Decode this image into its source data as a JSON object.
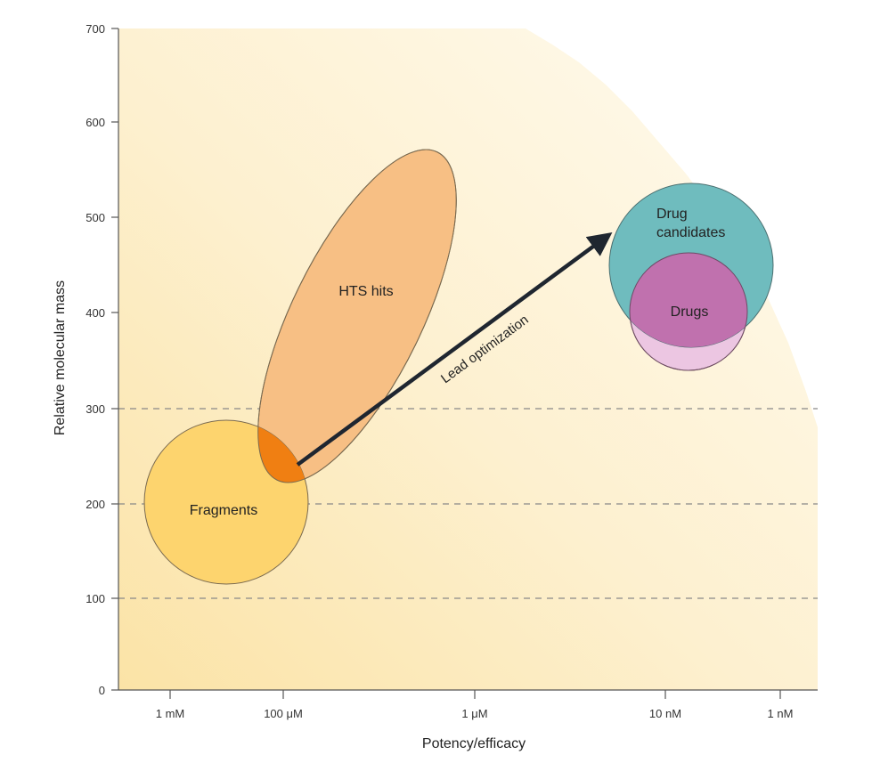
{
  "diagram": {
    "y_axis": {
      "title": "Relative molecular mass",
      "ticks": [
        "0",
        "100",
        "200",
        "300",
        "400",
        "500",
        "600",
        "700"
      ]
    },
    "x_axis": {
      "title": "Potency/efficacy",
      "ticks": [
        "1 mM",
        "100 μM",
        "1 μM",
        "10 nM",
        "1 nM"
      ]
    },
    "reference_lines": [
      100,
      200,
      300
    ],
    "regions": {
      "fragments": "Fragments",
      "hts_hits": "HTS hits",
      "drug_candidates_line1": "Drug",
      "drug_candidates_line2": "candidates",
      "drugs": "Drugs"
    },
    "arrow_label": "Lead optimization",
    "colors": {
      "background_gradient": "#fde9b6",
      "fragments": "#fdd46e",
      "hts_hits": "#f7bf84",
      "overlap": "#f07f12",
      "drug_candidates": "#6fbcbe",
      "drugs": "#c071ae",
      "drugs_light": "#ecc6e2",
      "arrow": "#1f2630"
    }
  }
}
